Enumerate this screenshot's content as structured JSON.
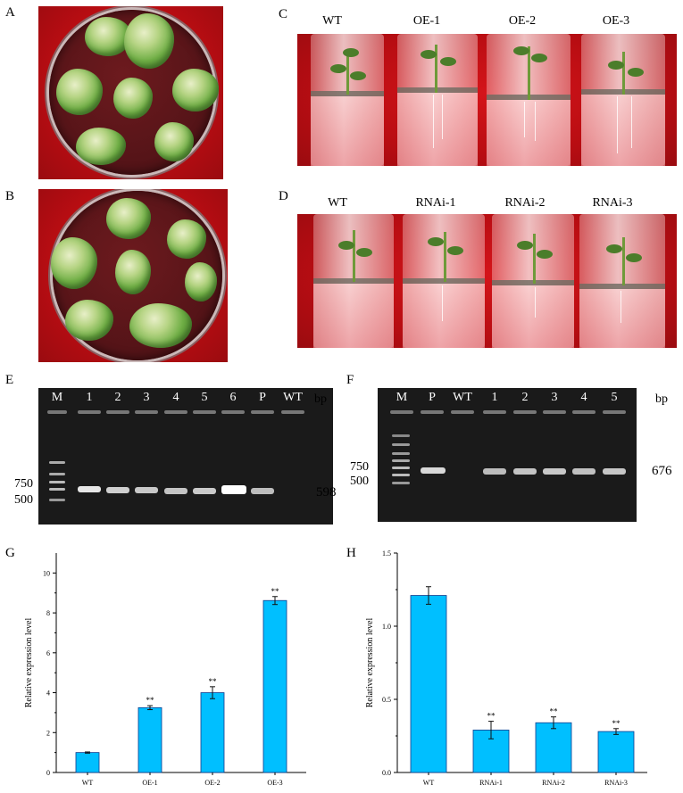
{
  "panels": {
    "A": "A",
    "B": "B",
    "C": "C",
    "D": "D",
    "E": "E",
    "F": "F",
    "G": "G",
    "H": "H"
  },
  "panel_c": {
    "lanes": [
      "WT",
      "OE-1",
      "OE-2",
      "OE-3"
    ]
  },
  "panel_d": {
    "lanes": [
      "WT",
      "RNAi-1",
      "RNAi-2",
      "RNAi-3"
    ]
  },
  "panel_e": {
    "lanes": [
      "M",
      "1",
      "2",
      "3",
      "4",
      "5",
      "6",
      "P",
      "WT"
    ],
    "unit": "bp",
    "marker_750": "750",
    "marker_500": "500",
    "band_size": "598"
  },
  "panel_f": {
    "lanes": [
      "M",
      "P",
      "WT",
      "1",
      "2",
      "3",
      "4",
      "5"
    ],
    "unit": "bp",
    "marker_750": "750",
    "marker_500": "500",
    "band_size": "676"
  },
  "colors": {
    "bar_fill": "#00bfff",
    "bar_stroke": "#0a3a8c",
    "background_red": "#c4111a"
  },
  "chart_data": [
    {
      "type": "bar",
      "panel": "G",
      "ylabel": "Relative expression level",
      "xlabel": "",
      "categories": [
        "WT",
        "OE-1",
        "OE-2",
        "OE-3"
      ],
      "values": [
        1.0,
        3.25,
        4.0,
        8.62
      ],
      "errors": [
        0.03,
        0.1,
        0.3,
        0.2
      ],
      "annotations": [
        "",
        "**",
        "**",
        "**"
      ],
      "ylim": [
        0,
        11
      ],
      "yticks": [
        "0",
        "2",
        "4",
        "6",
        "8",
        "10"
      ],
      "ytick_values": [
        0,
        2,
        4,
        6,
        8,
        10
      ]
    },
    {
      "type": "bar",
      "panel": "H",
      "ylabel": "Relative expression level",
      "xlabel": "",
      "categories": [
        "WT",
        "RNAi-1",
        "RNAi-2",
        "RNAi-3"
      ],
      "values": [
        1.21,
        0.29,
        0.34,
        0.28
      ],
      "errors": [
        0.06,
        0.06,
        0.04,
        0.02
      ],
      "annotations": [
        "",
        "**",
        "**",
        "**"
      ],
      "ylim": [
        0,
        1.5
      ],
      "yticks": [
        "0.0",
        "0.5",
        "1.0",
        "1.5"
      ],
      "ytick_values": [
        0,
        0.5,
        1.0,
        1.5
      ]
    }
  ]
}
